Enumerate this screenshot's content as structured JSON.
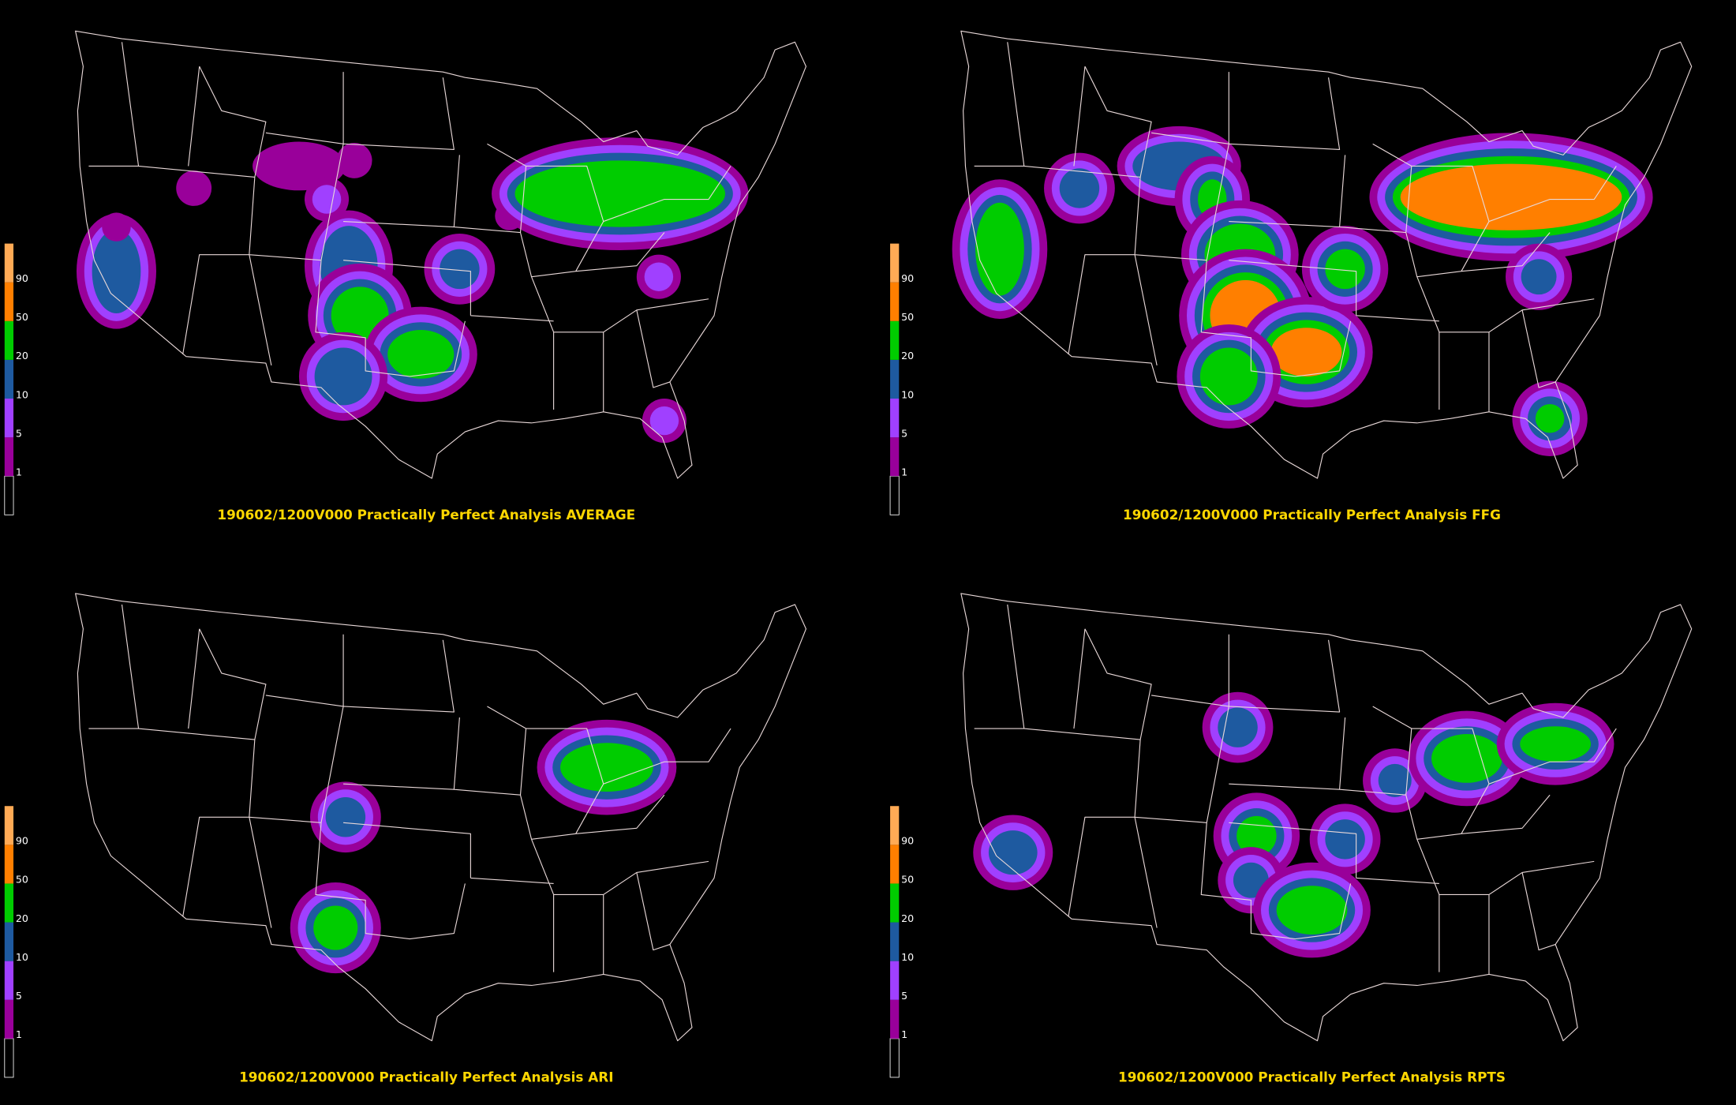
{
  "legend": {
    "levels": [
      1,
      5,
      10,
      20,
      50,
      90
    ],
    "colors": [
      "#99009a",
      "#a040ff",
      "#1e5aa0",
      "#00cc00",
      "#ff7f00",
      "#ffaa55"
    ]
  },
  "panels": [
    {
      "title": "190602/1200V000 Practically Perfect Analysis AVERAGE"
    },
    {
      "title": "190602/1200V000 Practically Perfect Analysis FFG"
    },
    {
      "title": "190602/1200V000 Practically Perfect Analysis ARI"
    },
    {
      "title": "190602/1200V000 Practically Perfect Analysis RPTS"
    }
  ]
}
